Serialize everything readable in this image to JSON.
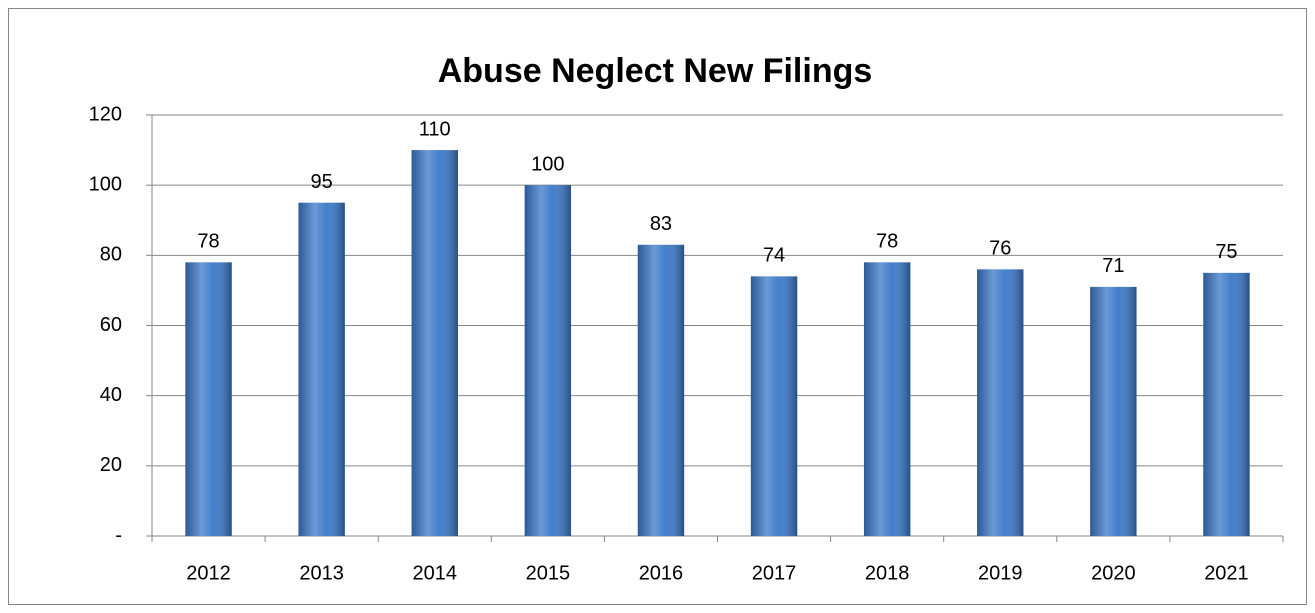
{
  "chart_data": {
    "type": "bar",
    "title": "Abuse Neglect New Filings",
    "categories": [
      "2012",
      "2013",
      "2014",
      "2015",
      "2016",
      "2017",
      "2018",
      "2019",
      "2020",
      "2021"
    ],
    "values": [
      78,
      95,
      110,
      100,
      83,
      74,
      78,
      76,
      71,
      75
    ],
    "color": "#3a78c8",
    "ylim": [
      0,
      120
    ],
    "yticks": [
      {
        "value": 0,
        "label": "-"
      },
      20,
      40,
      60,
      80,
      100,
      120
    ],
    "grid": true
  }
}
